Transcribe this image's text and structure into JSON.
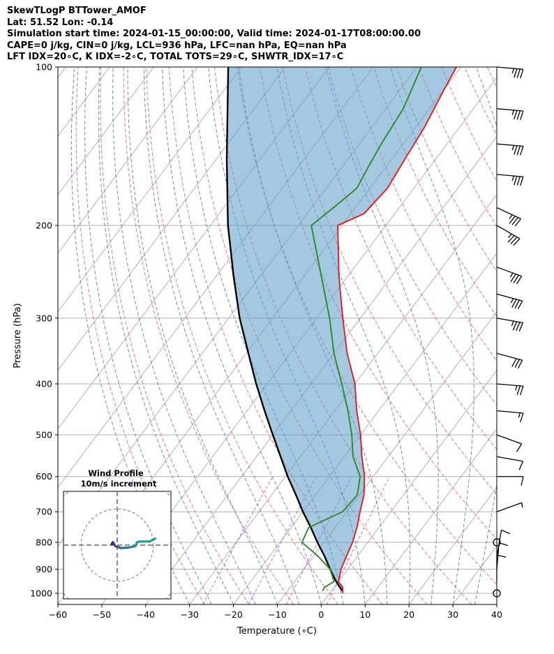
{
  "header": {
    "line1": "SkewTLogP BTTower_AMOF",
    "line2": "Lat: 51.52   Lon: -0.14",
    "line3": "Simulation start time: 2024-01-15_00:00:00, Valid time: 2024-01-17T08:00:00.00",
    "line4": "CAPE=0 j/kg, CIN=0 j/kg, LCL=936 hPa, LFC=nan hPa, EQ=nan hPa",
    "line5": "LFT IDX=20∘C, K IDX=-2∘C, TOTAL TOTS=29∘C, SHWTR_IDX=17∘C"
  },
  "chart_data": {
    "type": "line",
    "subtype": "skew-t log-p",
    "xlabel": "Temperature (∘C)",
    "ylabel": "Pressure (hPa)",
    "xlim": [
      -60,
      40
    ],
    "ylim": [
      1050,
      100
    ],
    "y_scale": "log",
    "x_ticks": [
      "−60",
      "−50",
      "−40",
      "−30",
      "−20",
      "−10",
      "0",
      "10",
      "20",
      "30",
      "40"
    ],
    "y_ticks": [
      "100",
      "200",
      "300",
      "400",
      "500",
      "600",
      "700",
      "800",
      "900",
      "1000"
    ],
    "grid": true,
    "series": [
      {
        "color": "#e41a1c",
        "points": [
          [
            1000,
            3
          ],
          [
            975,
            2
          ],
          [
            950,
            0
          ],
          [
            900,
            -1.5
          ],
          [
            850,
            -2.5
          ],
          [
            800,
            -3.5
          ],
          [
            750,
            -5
          ],
          [
            700,
            -7
          ],
          [
            650,
            -9
          ],
          [
            600,
            -12
          ],
          [
            550,
            -16
          ],
          [
            500,
            -20
          ],
          [
            450,
            -25
          ],
          [
            400,
            -30
          ],
          [
            350,
            -37
          ],
          [
            300,
            -44
          ],
          [
            250,
            -52
          ],
          [
            200,
            -61
          ],
          [
            190,
            -57
          ],
          [
            170,
            -56
          ],
          [
            150,
            -57
          ],
          [
            130,
            -58
          ],
          [
            110,
            -60
          ],
          [
            100,
            -61
          ]
        ]
      },
      {
        "color": "#2a8a2a",
        "points": [
          [
            990,
            -2
          ],
          [
            975,
            -2.2
          ],
          [
            950,
            -1
          ],
          [
            900,
            -4
          ],
          [
            850,
            -9
          ],
          [
            800,
            -15
          ],
          [
            750,
            -16
          ],
          [
            700,
            -11
          ],
          [
            650,
            -10.5
          ],
          [
            600,
            -13
          ],
          [
            550,
            -18
          ],
          [
            500,
            -22
          ],
          [
            450,
            -27
          ],
          [
            400,
            -33
          ],
          [
            350,
            -40
          ],
          [
            300,
            -47
          ],
          [
            250,
            -56
          ],
          [
            200,
            -67
          ],
          [
            185,
            -65
          ],
          [
            170,
            -63
          ],
          [
            155,
            -64
          ],
          [
            140,
            -65
          ],
          [
            120,
            -66
          ],
          [
            100,
            -69
          ]
        ]
      },
      {
        "color": "#000000",
        "points": [
          [
            990,
            2.5
          ],
          [
            950,
            -0.5
          ],
          [
            900,
            -4
          ],
          [
            850,
            -7.5
          ],
          [
            800,
            -11.5
          ],
          [
            750,
            -15.5
          ],
          [
            700,
            -20
          ],
          [
            650,
            -24.5
          ],
          [
            600,
            -29.5
          ],
          [
            550,
            -34.5
          ],
          [
            500,
            -40
          ],
          [
            450,
            -46
          ],
          [
            400,
            -52.5
          ],
          [
            350,
            -59.5
          ],
          [
            300,
            -67.5
          ],
          [
            250,
            -76
          ],
          [
            200,
            -86
          ],
          [
            150,
            -97.5
          ],
          [
            100,
            -113
          ]
        ]
      }
    ],
    "wind_barbs": [
      {
        "p": 100,
        "speed_kt": 35,
        "dir_deg": 275
      },
      {
        "p": 120,
        "speed_kt": 35,
        "dir_deg": 275
      },
      {
        "p": 140,
        "speed_kt": 35,
        "dir_deg": 275
      },
      {
        "p": 160,
        "speed_kt": 35,
        "dir_deg": 275
      },
      {
        "p": 185,
        "speed_kt": 35,
        "dir_deg": 295
      },
      {
        "p": 200,
        "speed_kt": 35,
        "dir_deg": 300
      },
      {
        "p": 240,
        "speed_kt": 35,
        "dir_deg": 290
      },
      {
        "p": 270,
        "speed_kt": 35,
        "dir_deg": 285
      },
      {
        "p": 300,
        "speed_kt": 35,
        "dir_deg": 280
      },
      {
        "p": 350,
        "speed_kt": 30,
        "dir_deg": 285
      },
      {
        "p": 400,
        "speed_kt": 25,
        "dir_deg": 275
      },
      {
        "p": 450,
        "speed_kt": 15,
        "dir_deg": 275
      },
      {
        "p": 500,
        "speed_kt": 10,
        "dir_deg": 290
      },
      {
        "p": 550,
        "speed_kt": 10,
        "dir_deg": 280
      },
      {
        "p": 600,
        "speed_kt": 10,
        "dir_deg": 270
      },
      {
        "p": 700,
        "speed_kt": 5,
        "dir_deg": 250
      },
      {
        "p": 800,
        "speed_kt": 0,
        "dir_deg": 0
      },
      {
        "p": 850,
        "speed_kt": 10,
        "dir_deg": 190
      },
      {
        "p": 900,
        "speed_kt": 10,
        "dir_deg": 185
      },
      {
        "p": 950,
        "speed_kt": 10,
        "dir_deg": 180
      },
      {
        "p": 1000,
        "speed_kt": 0,
        "dir_deg": 0
      }
    ],
    "inset": {
      "title": "Wind Profile",
      "subtitle": "10m/s increment",
      "hodograph_ms": [
        [
          -1.5,
          0.3
        ],
        [
          -1.2,
          0.8
        ],
        [
          -0.5,
          -0.3
        ],
        [
          1.0,
          -0.8
        ],
        [
          3.0,
          -0.7
        ],
        [
          5.0,
          -0.3
        ],
        [
          5.5,
          0.8
        ],
        [
          6.5,
          1.0
        ],
        [
          9.0,
          1.0
        ],
        [
          10.5,
          1.8
        ]
      ]
    }
  }
}
